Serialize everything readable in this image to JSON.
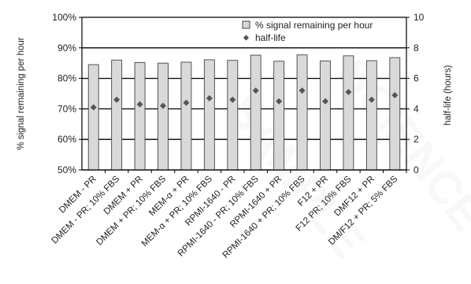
{
  "chart_data": {
    "type": "bar",
    "categories": [
      "DMEM - PR",
      "DMEM - PR; 10% FBS",
      "DMEM + PR",
      "DMEM + PR; 10% FBS",
      "MEM-α + PR",
      "MEM-α + PR; 10% FBS",
      "RPMI-1640 - PR",
      "RPMI-1640 - PR; 10% FBS",
      "RPMI-1640 + PR",
      "RPMI-1640 + PR; 10% FBS",
      "F12 + PR",
      "F12 PR; 10% FBS",
      "DMF12 + PR",
      "DM/F12 + PR; 5% FBS"
    ],
    "series": [
      {
        "name": "% signal remaining per hour",
        "type": "bar",
        "axis": "left",
        "values": [
          84.5,
          86.0,
          85.2,
          85.0,
          85.3,
          86.1,
          85.9,
          87.6,
          85.6,
          87.7,
          85.7,
          87.4,
          85.8,
          86.8
        ]
      },
      {
        "name": "half-life",
        "type": "scatter",
        "axis": "right",
        "marker": "diamond",
        "values": [
          4.1,
          4.6,
          4.3,
          4.2,
          4.4,
          4.7,
          4.6,
          5.2,
          4.5,
          5.2,
          4.5,
          5.1,
          4.6,
          4.9
        ]
      }
    ],
    "ylabel": "% signal remaining per hour",
    "y2label": "half-life (hours)",
    "ylim": [
      50,
      100
    ],
    "y_ticks": [
      "50%",
      "60%",
      "70%",
      "80%",
      "90%",
      "100%"
    ],
    "y2lim": [
      0,
      10
    ],
    "y2_ticks": [
      "0",
      "2",
      "4",
      "6",
      "8",
      "10"
    ],
    "grid": true,
    "legend_position": "top-right",
    "colors": {
      "bar_fill": "#d9d9d9",
      "bar_stroke": "#444444",
      "marker": "#555555",
      "grid": "#000000"
    }
  }
}
